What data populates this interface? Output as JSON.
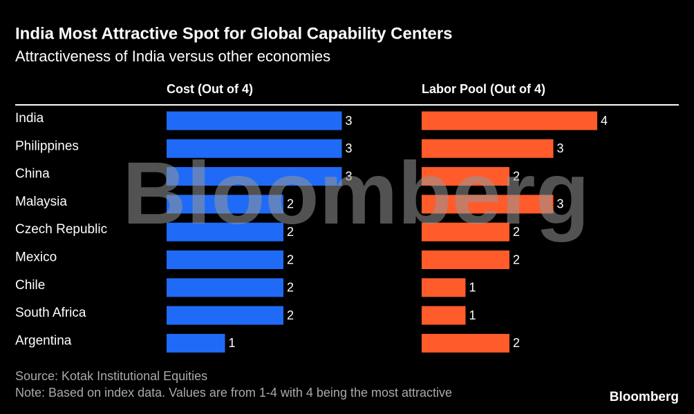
{
  "chart_data": {
    "type": "bar",
    "title": "India Most Attractive Spot for Global Capability Centers",
    "subtitle": "Attractiveness of India versus other economies",
    "categories": [
      "India",
      "Philippines",
      "China",
      "Malaysia",
      "Czech Republic",
      "Mexico",
      "Chile",
      "South Africa",
      "Argentina"
    ],
    "series": [
      {
        "name": "Cost (Out of 4)",
        "color": "#1f6bf7",
        "values": [
          3,
          3,
          3,
          2,
          2,
          2,
          2,
          2,
          1
        ]
      },
      {
        "name": "Labor Pool (Out of 4)",
        "color": "#ff5b2b",
        "values": [
          4,
          3,
          2,
          3,
          2,
          2,
          1,
          1,
          2
        ]
      }
    ],
    "xlim": [
      0,
      4
    ],
    "source": "Source: Kotak Institutional Equities",
    "note": "Note: Based on index data. Values are from 1-4 with 4 being the most attractive",
    "watermark": "Bloomberg",
    "brand": "Bloomberg"
  }
}
